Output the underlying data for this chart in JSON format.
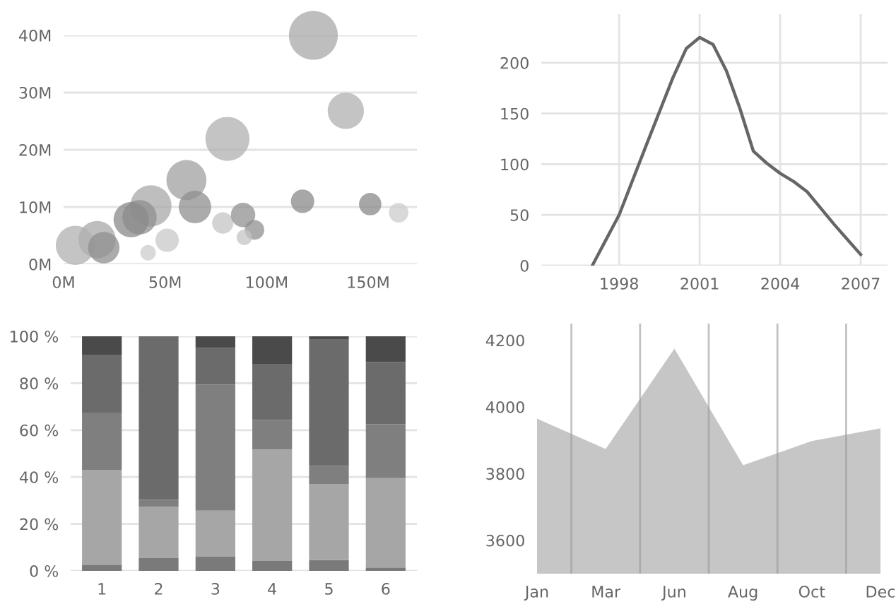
{
  "chart_data": [
    {
      "type": "bubble",
      "x": [
        123,
        139,
        80.7,
        60.5,
        64.7,
        43,
        37.4,
        33.3,
        16.5,
        5.8,
        19.8,
        51,
        41.6,
        78.4,
        88.4,
        94,
        89,
        117.7,
        151,
        165
      ],
      "values": [
        40,
        26.8,
        21.9,
        14.7,
        10.0,
        10.2,
        8.2,
        7.8,
        4.3,
        3.3,
        2.9,
        4.2,
        2.0,
        7.2,
        8.6,
        6.0,
        4.7,
        11.0,
        10.5,
        9.0
      ],
      "sizes": [
        1,
        0.55,
        0.81,
        0.67,
        0.44,
        0.71,
        0.49,
        0.52,
        0.58,
        0.64,
        0.41,
        0.23,
        0.1,
        0.19,
        0.25,
        0.16,
        0.1,
        0.23,
        0.21,
        0.16
      ],
      "colors": [
        "#a8a8a8",
        "#b0b0b0",
        "#b0b0b0",
        "#a0a0a0",
        "#8f8f8f",
        "#a8a8a8",
        "#8f8f8f",
        "#8a8a8a",
        "#a8a8a8",
        "#b0b0b0",
        "#8f8f8f",
        "#c8c8c8",
        "#cccccc",
        "#c4c4c4",
        "#909090",
        "#909090",
        "#c4c4c4",
        "#8a8a8a",
        "#8a8a8a",
        "#cccccc"
      ],
      "xlim": [
        0,
        174
      ],
      "ylim": [
        0,
        40
      ],
      "xticks": [
        {
          "value": 0,
          "label": "0M"
        },
        {
          "value": 50,
          "label": "50M"
        },
        {
          "value": 100,
          "label": "100M"
        },
        {
          "value": 150,
          "label": "150M"
        }
      ],
      "yticks": [
        {
          "value": 0,
          "label": "0M"
        },
        {
          "value": 10,
          "label": "10M"
        },
        {
          "value": 20,
          "label": "20M"
        },
        {
          "value": 30,
          "label": "30M"
        },
        {
          "value": 40,
          "label": "40M"
        }
      ],
      "grid": "y"
    },
    {
      "type": "line",
      "x": [
        1997,
        1997.5,
        1998,
        1999,
        2000,
        2000.5,
        2001,
        2001.5,
        2002,
        2002.5,
        2003,
        2003.5,
        2004,
        2004.5,
        2005,
        2005.5,
        2006,
        2006.5,
        2007
      ],
      "series": [
        {
          "color": "#666666",
          "values": [
            0,
            25,
            50,
            118,
            185,
            214,
            225,
            218,
            192,
            155,
            113,
            101,
            91,
            83,
            73,
            57,
            41,
            26,
            11
          ]
        }
      ],
      "xlim": [
        1995.1,
        2008
      ],
      "ylim": [
        0,
        248
      ],
      "xticks": [
        1998,
        2001,
        2004,
        2007
      ],
      "yticks": [
        0,
        50,
        100,
        150,
        200
      ],
      "grid": true
    },
    {
      "type": "bar",
      "stacked": true,
      "categories": [
        "1",
        "2",
        "3",
        "4",
        "5",
        "6"
      ],
      "series": [
        {
          "color": "#7a7a7a",
          "values": [
            2.6,
            5.4,
            6.0,
            4.2,
            4.6,
            1.4
          ]
        },
        {
          "color": "#a6a6a6",
          "values": [
            40.3,
            21.9,
            19.7,
            47.5,
            32.3,
            38.1
          ]
        },
        {
          "color": "#7f7f7f",
          "values": [
            24.6,
            3.0,
            53.7,
            12.6,
            7.8,
            23.0
          ]
        },
        {
          "color": "#6b6b6b",
          "values": [
            24.7,
            69.7,
            15.6,
            23.7,
            53.9,
            26.5
          ]
        },
        {
          "color": "#4a4a4a",
          "values": [
            7.8,
            0,
            5.0,
            12.0,
            1.4,
            11.0
          ]
        }
      ],
      "ylim": [
        0,
        100
      ],
      "yticks": [
        {
          "value": 0,
          "label": "0 %"
        },
        {
          "value": 20,
          "label": "20 %"
        },
        {
          "value": 40,
          "label": "40 %"
        },
        {
          "value": 60,
          "label": "60 %"
        },
        {
          "value": 80,
          "label": "80 %"
        },
        {
          "value": 100,
          "label": "100 %"
        }
      ],
      "grid": "y"
    },
    {
      "type": "area",
      "categories": [
        "Jan",
        "Mar",
        "Jun",
        "Aug",
        "Oct",
        "Dec"
      ],
      "series": [
        {
          "color": "#c6c6c6",
          "values": [
            3965,
            3874,
            4175,
            3825,
            3898,
            3936
          ]
        }
      ],
      "ylim": [
        3500,
        4250
      ],
      "yticks": [
        3600,
        3800,
        4000,
        4200
      ],
      "grid": "x"
    }
  ]
}
